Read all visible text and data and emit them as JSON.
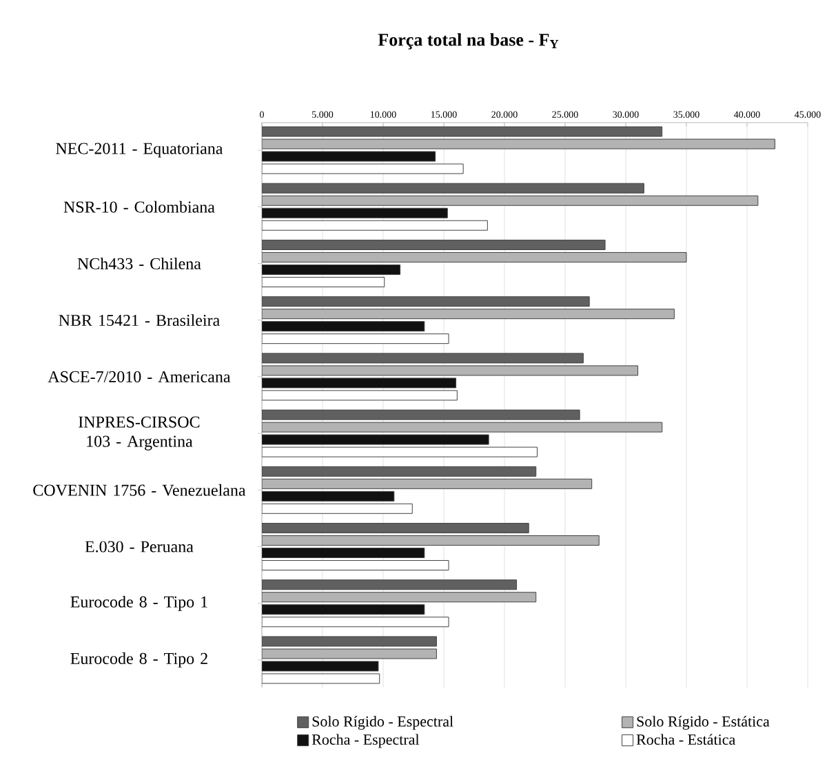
{
  "chart_data": {
    "type": "bar",
    "orientation": "horizontal",
    "title": "Força total na base - F$_{Y}$",
    "categories": [
      "NEC-2011 - Equatoriana",
      "NSR-10 - Colombiana",
      "NCh433 - Chilena",
      "NBR 15421 - Brasileira",
      "ASCE-7/2010 - Americana",
      "INPRES-CIRSOC 103 - Argentina",
      "COVENIN 1756 - Venezuelana",
      "E.030 - Peruana",
      "Eurocode 8 - Tipo 1",
      "Eurocode 8 - Tipo 2"
    ],
    "series": [
      {
        "name": "Solo Rígido - Espectral",
        "color": "#606060",
        "values": [
          33000,
          31500,
          28300,
          27000,
          26500,
          26200,
          22600,
          22000,
          21000,
          14400
        ]
      },
      {
        "name": "Solo Rígido - Estática",
        "color": "#b3b3b3",
        "values": [
          42300,
          40900,
          35000,
          34000,
          31000,
          33000,
          27200,
          27800,
          22600,
          14400
        ]
      },
      {
        "name": "Rocha - Espectral",
        "color": "#111111",
        "values": [
          14300,
          15300,
          11400,
          13400,
          16000,
          18700,
          10900,
          13400,
          13400,
          9600
        ]
      },
      {
        "name": "Rocha - Estática",
        "color": "#ffffff",
        "values": [
          16600,
          18600,
          10100,
          15400,
          16100,
          22700,
          12400,
          15400,
          15400,
          9700
        ]
      }
    ],
    "xlim": [
      0,
      45000
    ],
    "xticks": [
      0,
      {
        "value": 5000,
        "label": "5.000"
      },
      {
        "value": 10000,
        "label": "10.000"
      },
      {
        "value": 15000,
        "label": "15.000"
      },
      {
        "value": 20000,
        "label": "20.000"
      },
      {
        "value": 25000,
        "label": "25.000"
      },
      {
        "value": 30000,
        "label": "30.000"
      },
      {
        "value": 35000,
        "label": "35.000"
      },
      {
        "value": 40000,
        "label": "40.000"
      },
      {
        "value": 45000,
        "label": "45.000"
      }
    ],
    "grid": "x",
    "legend": "bottom"
  }
}
